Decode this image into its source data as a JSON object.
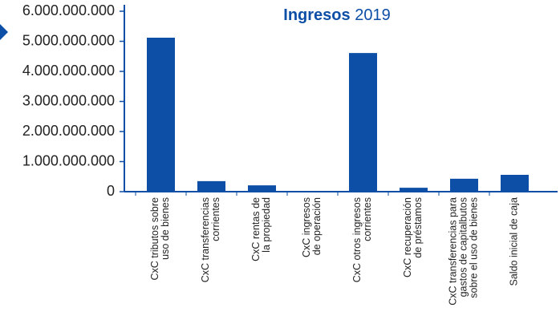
{
  "chart_data": {
    "type": "bar",
    "title_parts": [
      "Ingresos",
      "2019"
    ],
    "categories": [
      "CxC tributos sobre\nuso de bienes",
      "CxC  transferencias\ncorrientes",
      "CxC rentas de\nla propiedad",
      "CxC ingresos\nde operación",
      "CxC otros ingresos\ncorrientes",
      "CxC recuperación\nde préstamos",
      "CxC transferencias para\ngastos de capitalbutos\nsobre el uso de bienes",
      "Saldo inicial de caja"
    ],
    "values": [
      5120000000,
      350000000,
      210000000,
      10000000,
      4610000000,
      130000000,
      430000000,
      560000000
    ],
    "color": "#0d4ea6",
    "ylim": [
      0,
      6000000000
    ],
    "yticks": [
      {
        "value": 0,
        "label": "0"
      },
      {
        "value": 1000000000,
        "label": "1.000.000.000"
      },
      {
        "value": 2000000000,
        "label": "2.000.000.000"
      },
      {
        "value": 3000000000,
        "label": "3.000.000.000"
      },
      {
        "value": 4000000000,
        "label": "4.000.000.000"
      },
      {
        "value": 5000000000,
        "label": "5.000.000.000"
      },
      {
        "value": 6000000000,
        "label": "6.000.000.000"
      }
    ],
    "grid": false
  }
}
